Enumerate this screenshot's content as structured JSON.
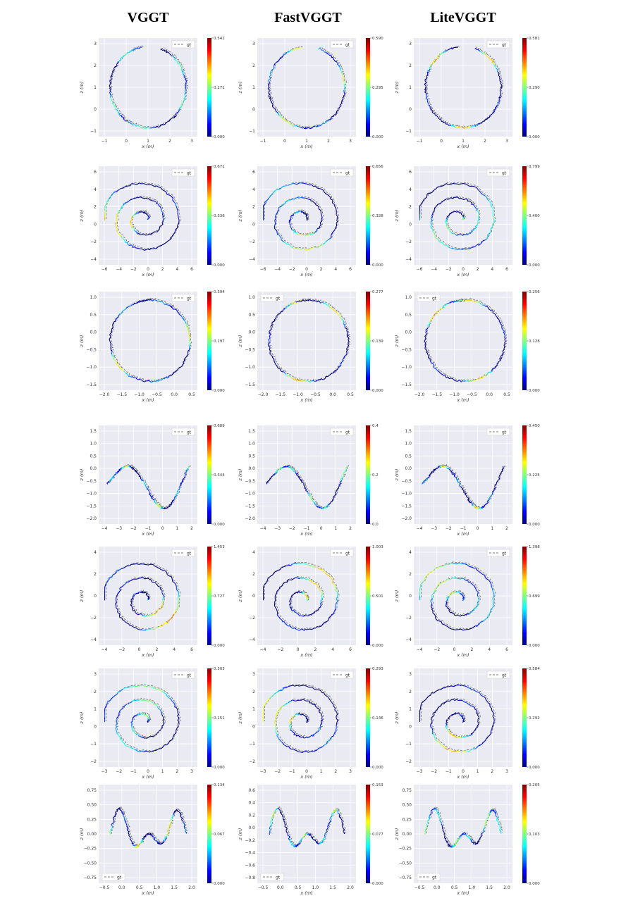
{
  "columns": [
    "VGGT",
    "FastVGGT",
    "LiteVGGT"
  ],
  "legend_label": "gt",
  "ylabel": "z (m)",
  "xlabel": "x (m)",
  "colormap": "jet",
  "colors": {
    "plot_bg": "#eaeaf2",
    "grid": "#ffffff",
    "gt_line": "#777777"
  },
  "chart_data": [
    {
      "type": "line",
      "row": 0,
      "method": "VGGT",
      "xticks": [
        "−1",
        "0",
        "1",
        "2",
        "3"
      ],
      "yticks": [
        "3",
        "2",
        "1",
        "0",
        "−1"
      ],
      "colorbar": [
        "0.542",
        "0.271",
        "0.000"
      ],
      "xlim": [
        -1.5,
        3.5
      ],
      "ylim": [
        -1.8,
        3.3
      ],
      "legend": "top-right",
      "shape": "loop"
    },
    {
      "type": "line",
      "row": 0,
      "method": "FastVGGT",
      "xticks": [
        "−1",
        "0",
        "1",
        "2",
        "3"
      ],
      "yticks": [
        "3",
        "2",
        "1",
        "0",
        "−1"
      ],
      "colorbar": [
        "0.590",
        "0.295",
        "0.000"
      ],
      "xlim": [
        -1.5,
        3.5
      ],
      "ylim": [
        -1.8,
        3.3
      ],
      "legend": "top-right",
      "shape": "loop"
    },
    {
      "type": "line",
      "row": 0,
      "method": "LiteVGGT",
      "xticks": [
        "−1",
        "0",
        "1",
        "2",
        "3"
      ],
      "yticks": [
        "3",
        "2",
        "1",
        "0",
        "−1"
      ],
      "colorbar": [
        "0.581",
        "0.290",
        "0.000"
      ],
      "xlim": [
        -1.5,
        3.5
      ],
      "ylim": [
        -1.8,
        3.3
      ],
      "legend": "top-right",
      "shape": "loop"
    },
    {
      "type": "line",
      "row": 1,
      "method": "VGGT",
      "xticks": [
        "−6",
        "−4",
        "−2",
        "0",
        "2",
        "4",
        "6"
      ],
      "yticks": [
        "6",
        "4",
        "2",
        "0",
        "−2",
        "−4"
      ],
      "colorbar": [
        "0.671",
        "0.336",
        "0.000"
      ],
      "xlim": [
        -6.5,
        7.5
      ],
      "ylim": [
        -5,
        7.5
      ],
      "legend": "top-right",
      "shape": "spiral"
    },
    {
      "type": "line",
      "row": 1,
      "method": "FastVGGT",
      "xticks": [
        "−6",
        "−4",
        "−2",
        "0",
        "2",
        "4",
        "6"
      ],
      "yticks": [
        "6",
        "4",
        "2",
        "0",
        "−2",
        "−4"
      ],
      "colorbar": [
        "0.656",
        "0.328",
        "0.000"
      ],
      "xlim": [
        -6.5,
        7.5
      ],
      "ylim": [
        -5,
        7.5
      ],
      "legend": "top-right",
      "shape": "spiral"
    },
    {
      "type": "line",
      "row": 1,
      "method": "LiteVGGT",
      "xticks": [
        "−6",
        "−4",
        "−2",
        "0",
        "2",
        "4",
        "6"
      ],
      "yticks": [
        "6",
        "4",
        "2",
        "0",
        "−2",
        "−4"
      ],
      "colorbar": [
        "0.799",
        "0.400",
        "0.000"
      ],
      "xlim": [
        -6.5,
        7.5
      ],
      "ylim": [
        -5,
        7.5
      ],
      "legend": "top-right",
      "shape": "spiral"
    },
    {
      "type": "line",
      "row": 2,
      "method": "VGGT",
      "xticks": [
        "−2.0",
        "−1.5",
        "−1.0",
        "−0.5",
        "0.0",
        "0.5"
      ],
      "yticks": [
        "1.0",
        "0.5",
        "0.0",
        "−0.5",
        "−1.0",
        "−1.5"
      ],
      "colorbar": [
        "0.394",
        "0.197",
        "0.000"
      ],
      "xlim": [
        -2.2,
        0.9
      ],
      "ylim": [
        -1.8,
        1.4
      ],
      "legend": "top-right",
      "shape": "loop2"
    },
    {
      "type": "line",
      "row": 2,
      "method": "FastVGGT",
      "xticks": [
        "−2.0",
        "−1.5",
        "−1.0",
        "−0.5",
        "0.0",
        "0.5"
      ],
      "yticks": [
        "1.0",
        "0.5",
        "0.0",
        "−0.5",
        "−1.0",
        "−1.5"
      ],
      "colorbar": [
        "0.277",
        "0.139",
        "0.000"
      ],
      "xlim": [
        -2.2,
        0.9
      ],
      "ylim": [
        -1.8,
        1.4
      ],
      "legend": "top-left",
      "shape": "loop2"
    },
    {
      "type": "line",
      "row": 2,
      "method": "LiteVGGT",
      "xticks": [
        "−2.0",
        "−1.5",
        "−1.0",
        "−0.5",
        "0.0",
        "0.5"
      ],
      "yticks": [
        "1.0",
        "0.5",
        "0.0",
        "−0.5",
        "−1.0",
        "−1.5"
      ],
      "colorbar": [
        "0.256",
        "0.128",
        "0.000"
      ],
      "xlim": [
        -2.2,
        0.9
      ],
      "ylim": [
        -1.8,
        1.4
      ],
      "legend": "top-left",
      "shape": "loop2"
    },
    {
      "type": "line",
      "row": 3,
      "method": "VGGT",
      "xticks": [
        "−4",
        "−3",
        "−2",
        "−1",
        "0",
        "1",
        "2"
      ],
      "yticks": [
        "1.5",
        "1.0",
        "0.5",
        "0.0",
        "−0.5",
        "−1.0",
        "−1.5",
        "−2.0"
      ],
      "colorbar": [
        "0.689",
        "0.344",
        "0.000"
      ],
      "xlim": [
        -4.3,
        2.5
      ],
      "ylim": [
        -2.1,
        1.7
      ],
      "legend": "top-right",
      "shape": "wave"
    },
    {
      "type": "line",
      "row": 3,
      "method": "FastVGGT",
      "xticks": [
        "−4",
        "−3",
        "−2",
        "−1",
        "0",
        "1",
        "2"
      ],
      "yticks": [
        "1.5",
        "1.0",
        "0.5",
        "0.0",
        "−0.5",
        "−1.0",
        "−1.5",
        "−2.0"
      ],
      "colorbar": [
        "0.4",
        "0.2",
        "0.0"
      ],
      "xlim": [
        -4.3,
        2.5
      ],
      "ylim": [
        -2.1,
        1.7
      ],
      "legend": "top-right",
      "shape": "wave"
    },
    {
      "type": "line",
      "row": 3,
      "method": "LiteVGGT",
      "xticks": [
        "−4",
        "−3",
        "−2",
        "−1",
        "0",
        "1",
        "2"
      ],
      "yticks": [
        "1.5",
        "1.0",
        "0.5",
        "0.0",
        "−0.5",
        "−1.0",
        "−1.5",
        "−2.0"
      ],
      "colorbar": [
        "0.450",
        "0.225",
        "0.000"
      ],
      "xlim": [
        -4.3,
        2.5
      ],
      "ylim": [
        -2.1,
        1.7
      ],
      "legend": "top-right",
      "shape": "wave"
    },
    {
      "type": "line",
      "row": 4,
      "method": "VGGT",
      "xticks": [
        "−4",
        "−2",
        "0",
        "2",
        "4",
        "6"
      ],
      "yticks": [
        "4",
        "2",
        "0",
        "−2",
        "−4"
      ],
      "colorbar": [
        "1.453",
        "0.727",
        "0.000"
      ],
      "xlim": [
        -5.5,
        7
      ],
      "ylim": [
        -5.5,
        4.5
      ],
      "legend": "top-right",
      "shape": "spiral2"
    },
    {
      "type": "line",
      "row": 4,
      "method": "FastVGGT",
      "xticks": [
        "−4",
        "−2",
        "0",
        "2",
        "4",
        "6"
      ],
      "yticks": [
        "4",
        "2",
        "0",
        "−2",
        "−4"
      ],
      "colorbar": [
        "1.003",
        "0.501",
        "0.000"
      ],
      "xlim": [
        -5.5,
        7
      ],
      "ylim": [
        -5.5,
        4.5
      ],
      "legend": "top-right",
      "shape": "spiral2"
    },
    {
      "type": "line",
      "row": 4,
      "method": "LiteVGGT",
      "xticks": [
        "−4",
        "−2",
        "0",
        "2",
        "4",
        "6"
      ],
      "yticks": [
        "4",
        "2",
        "0",
        "−2",
        "−4"
      ],
      "colorbar": [
        "1.398",
        "0.699",
        "0.000"
      ],
      "xlim": [
        -5.5,
        7
      ],
      "ylim": [
        -5.5,
        4.5
      ],
      "legend": "top-right",
      "shape": "spiral2"
    },
    {
      "type": "line",
      "row": 5,
      "method": "VGGT",
      "xticks": [
        "−3",
        "−2",
        "−1",
        "0",
        "1",
        "2",
        "3"
      ],
      "yticks": [
        "3",
        "2",
        "1",
        "0",
        "−1",
        "−2"
      ],
      "colorbar": [
        "0.303",
        "0.151",
        "0.000"
      ],
      "xlim": [
        -3.3,
        3.6
      ],
      "ylim": [
        -2.9,
        3.2
      ],
      "legend": "top-right",
      "shape": "spiral3"
    },
    {
      "type": "line",
      "row": 5,
      "method": "FastVGGT",
      "xticks": [
        "−3",
        "−2",
        "−1",
        "0",
        "1",
        "2",
        "3"
      ],
      "yticks": [
        "3",
        "2",
        "1",
        "0",
        "−1",
        "−2"
      ],
      "colorbar": [
        "0.293",
        "0.146",
        "0.000"
      ],
      "xlim": [
        -3.3,
        3.6
      ],
      "ylim": [
        -2.9,
        3.2
      ],
      "legend": "top-right",
      "shape": "spiral3"
    },
    {
      "type": "line",
      "row": 5,
      "method": "LiteVGGT",
      "xticks": [
        "−3",
        "−2",
        "−1",
        "0",
        "1",
        "2",
        "3"
      ],
      "yticks": [
        "3",
        "2",
        "1",
        "0",
        "−1",
        "−2"
      ],
      "colorbar": [
        "0.584",
        "0.292",
        "0.000"
      ],
      "xlim": [
        -3.3,
        3.6
      ],
      "ylim": [
        -2.9,
        3.2
      ],
      "legend": "top-right",
      "shape": "spiral3"
    },
    {
      "type": "line",
      "row": 6,
      "method": "VGGT",
      "xticks": [
        "−0.5",
        "0.0",
        "0.5",
        "1.0",
        "1.5",
        "2.0"
      ],
      "yticks": [
        "0.75",
        "0.50",
        "0.25",
        "0.00",
        "−0.25",
        "−0.50",
        "−0.75"
      ],
      "colorbar": [
        "0.134",
        "0.067",
        "0.000"
      ],
      "xlim": [
        -0.7,
        2.1
      ],
      "ylim": [
        -0.85,
        0.85
      ],
      "legend": "bottom-left",
      "shape": "hooks"
    },
    {
      "type": "line",
      "row": 6,
      "method": "FastVGGT",
      "xticks": [
        "−0.5",
        "0.0",
        "0.5",
        "1.0",
        "1.5",
        "2.0"
      ],
      "yticks": [
        "0.6",
        "0.4",
        "0.2",
        "0.0",
        "−0.2",
        "−0.4",
        "−0.6",
        "−0.8"
      ],
      "colorbar": [
        "0.153",
        "0.077",
        "0.000"
      ],
      "xlim": [
        -0.7,
        2.1
      ],
      "ylim": [
        -0.85,
        0.75
      ],
      "legend": "bottom-left",
      "shape": "hooks"
    },
    {
      "type": "line",
      "row": 6,
      "method": "LiteVGGT",
      "xticks": [
        "−0.5",
        "0.0",
        "0.5",
        "1.0",
        "1.5",
        "2.0"
      ],
      "yticks": [
        "0.75",
        "0.50",
        "0.25",
        "0.00",
        "−0.25",
        "−0.50",
        "−0.75"
      ],
      "colorbar": [
        "0.205",
        "0.103",
        "0.000"
      ],
      "xlim": [
        -0.7,
        2.1
      ],
      "ylim": [
        -0.85,
        0.85
      ],
      "legend": "bottom-left",
      "shape": "hooks"
    }
  ]
}
